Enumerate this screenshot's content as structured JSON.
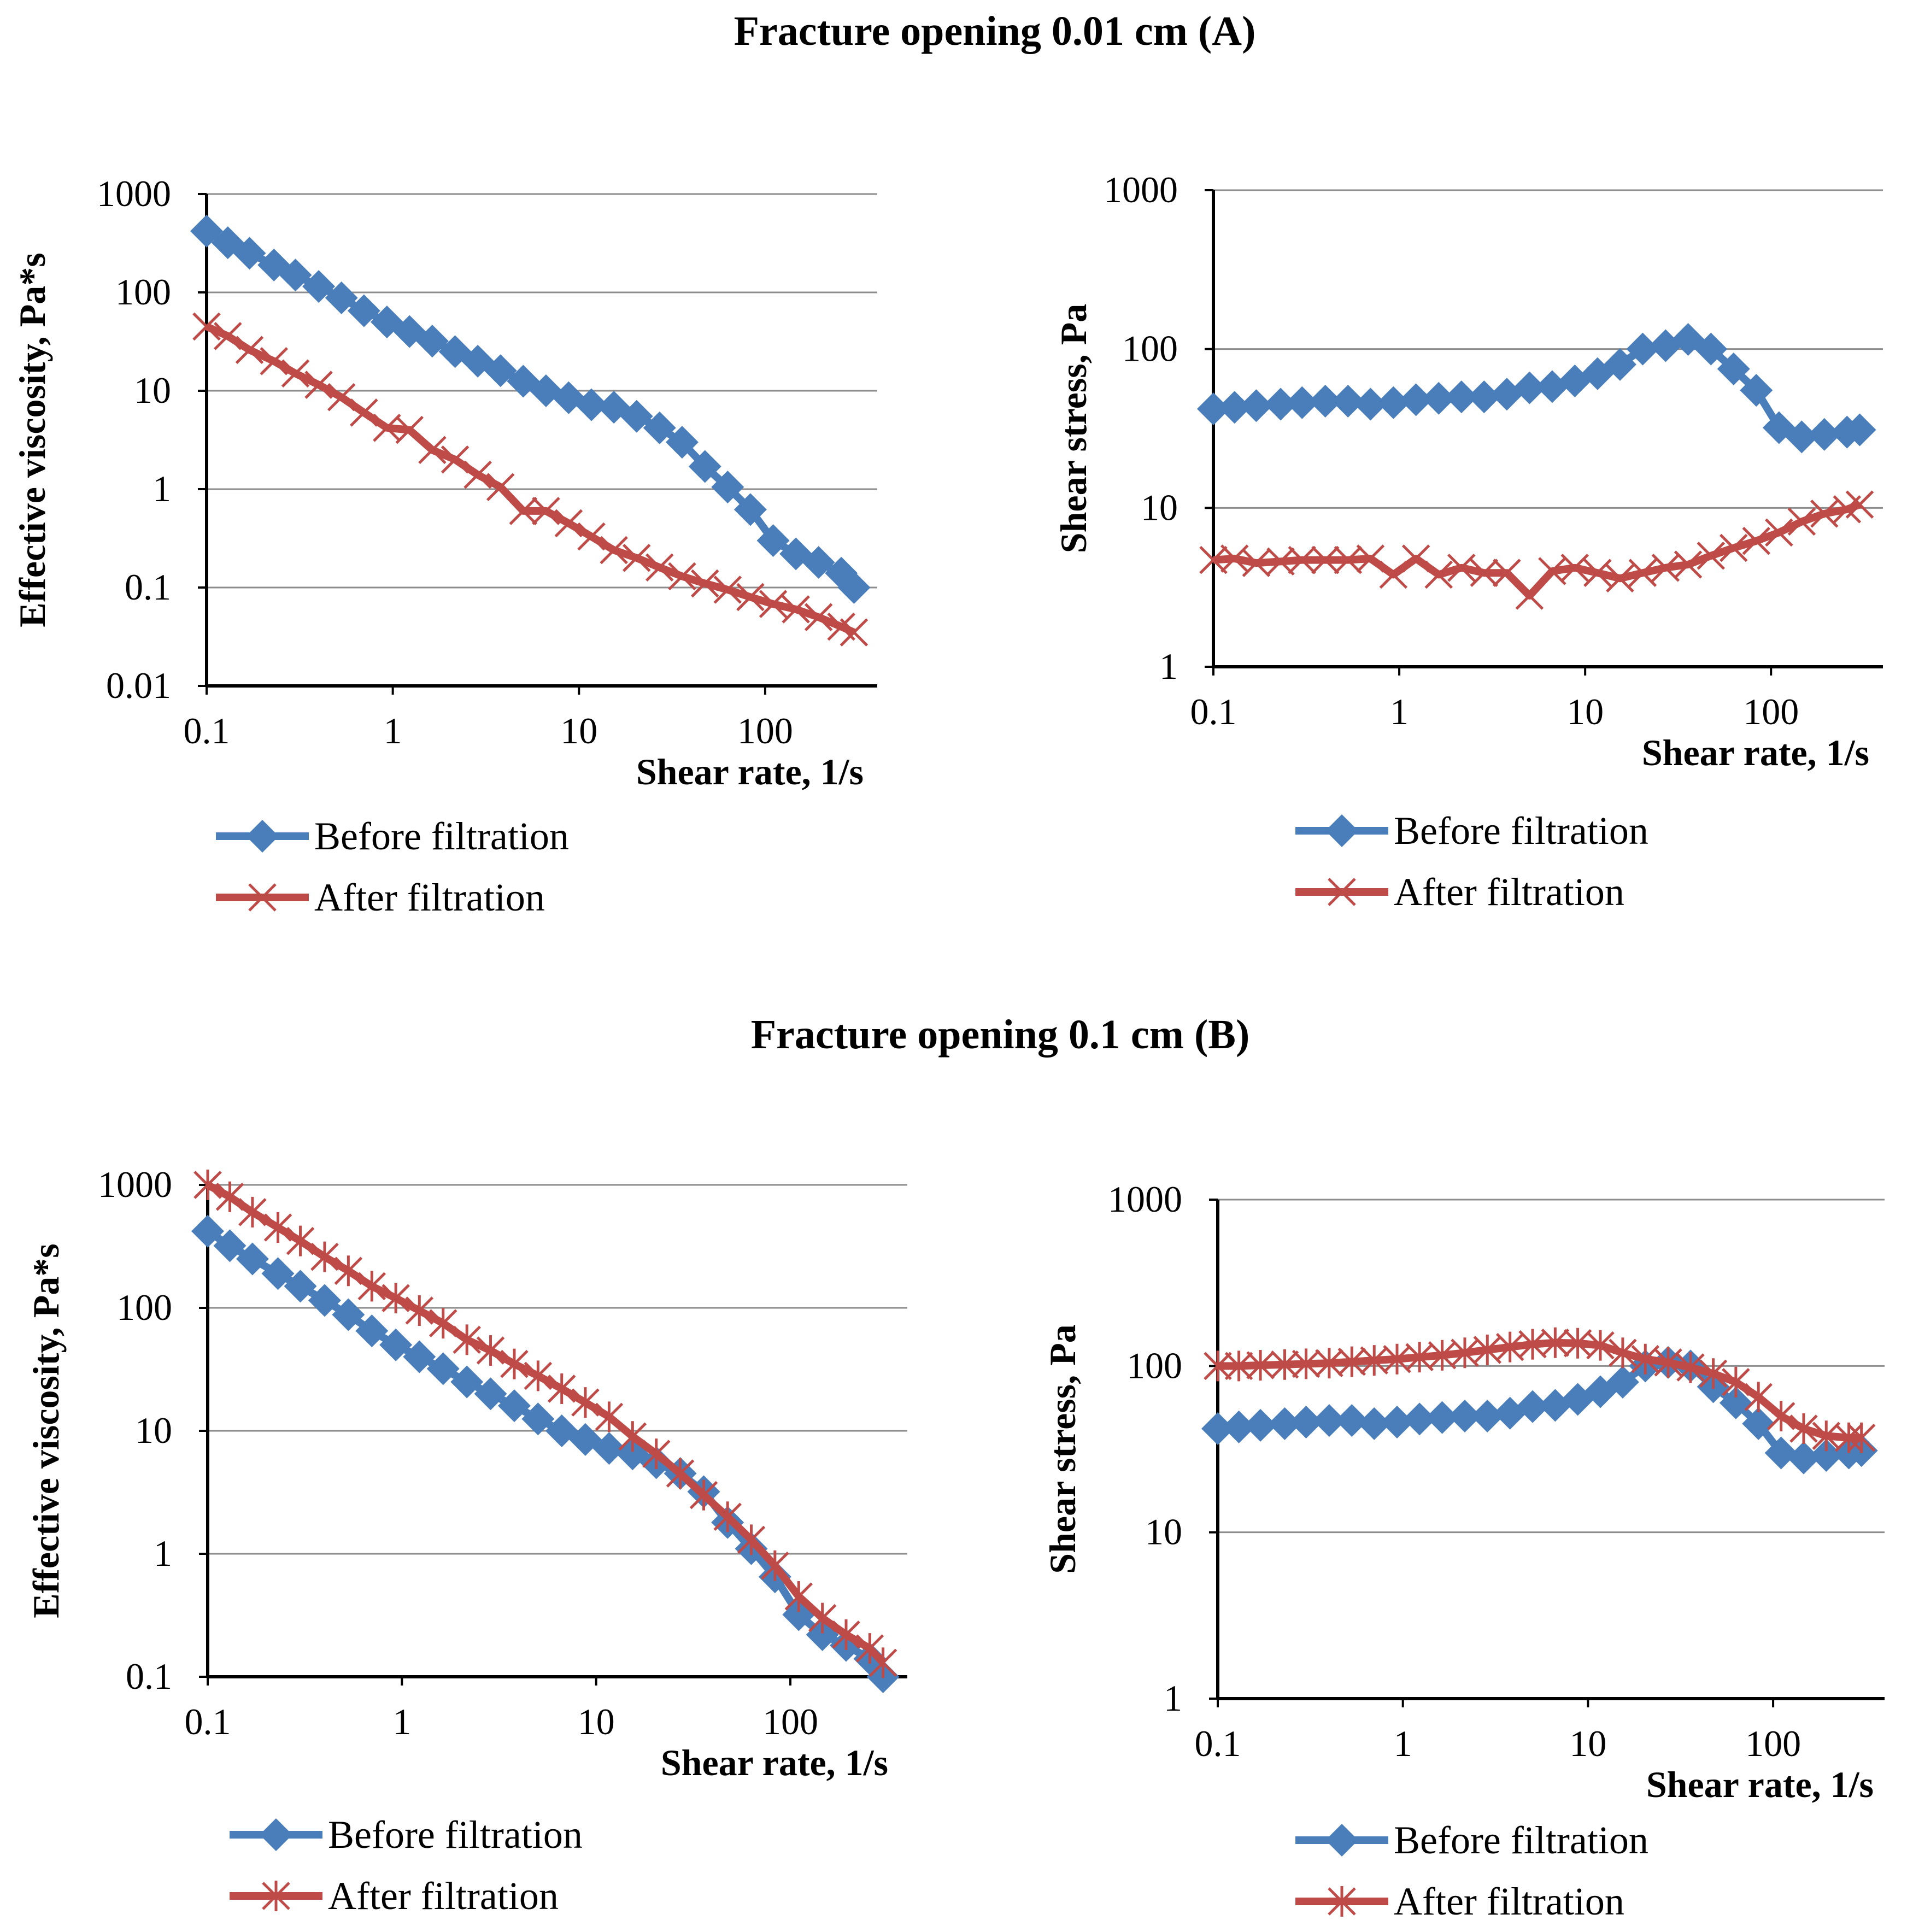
{
  "sections": [
    {
      "title": "Fracture opening 0.01 cm (A)"
    },
    {
      "title": "Fracture opening 0.1 cm (B)"
    }
  ],
  "colors": {
    "before": "#4a7ebb",
    "after": "#be4b48"
  },
  "chart_data": [
    {
      "type": "line",
      "panel": "A-viscosity",
      "xscale": "log",
      "yscale": "log",
      "xlabel": "Shear rate, 1/s",
      "ylabel": "Effective viscosity, Pa*s",
      "xlim": [
        0.1,
        400
      ],
      "ylim": [
        0.01,
        1000
      ],
      "xticks": [
        "0.1",
        "1",
        "10",
        "100"
      ],
      "yticks": [
        "0.01",
        "0.1",
        "1",
        "10",
        "100",
        "1000"
      ],
      "grid": true,
      "legend": "bottom",
      "series": [
        {
          "name": "Before filtration",
          "marker": "diamond",
          "x": [
            0.1,
            0.13,
            0.17,
            0.23,
            0.3,
            0.4,
            0.53,
            0.7,
            0.93,
            1.23,
            1.63,
            2.16,
            2.86,
            3.79,
            5.02,
            6.65,
            8.8,
            11.66,
            15.4,
            20.4,
            27.1,
            35.8,
            47.5,
            62.9,
            83.3,
            110.4,
            146.2,
            193.6,
            256.4,
            300
          ],
          "y": [
            420,
            320,
            250,
            190,
            150,
            115,
            88,
            65,
            50,
            40,
            32,
            25,
            20,
            16,
            12.5,
            10,
            8.5,
            7.2,
            6.8,
            5.5,
            4.2,
            3,
            1.7,
            1.05,
            0.62,
            0.3,
            0.22,
            0.18,
            0.14,
            0.1
          ]
        },
        {
          "name": "After filtration",
          "marker": "x",
          "x": [
            0.1,
            0.13,
            0.17,
            0.23,
            0.3,
            0.4,
            0.53,
            0.7,
            0.93,
            1.23,
            1.63,
            2.16,
            2.86,
            3.79,
            5.02,
            6.65,
            8.8,
            11.66,
            15.4,
            20.4,
            27.1,
            35.8,
            47.5,
            62.9,
            83.3,
            110.4,
            146.2,
            193.6,
            256.4,
            300
          ],
          "y": [
            45,
            36,
            26,
            20,
            15,
            11.5,
            8.6,
            6,
            4.2,
            4,
            2.5,
            2,
            1.4,
            1.05,
            0.6,
            0.6,
            0.45,
            0.33,
            0.24,
            0.2,
            0.16,
            0.13,
            0.11,
            0.095,
            0.08,
            0.068,
            0.06,
            0.05,
            0.04,
            0.035
          ]
        }
      ]
    },
    {
      "type": "line",
      "panel": "A-stress",
      "xscale": "log",
      "yscale": "log",
      "xlabel": "Shear rate, 1/s",
      "ylabel": "Shear stress, Pa",
      "xlim": [
        0.1,
        400
      ],
      "ylim": [
        1,
        1000
      ],
      "xticks": [
        "0.1",
        "1",
        "10",
        "100"
      ],
      "yticks": [
        "1",
        "10",
        "100",
        "1000"
      ],
      "grid": true,
      "legend": "bottom",
      "series": [
        {
          "name": "Before filtration",
          "marker": "diamond",
          "x": [
            0.1,
            0.13,
            0.17,
            0.23,
            0.3,
            0.4,
            0.53,
            0.7,
            0.93,
            1.23,
            1.63,
            2.16,
            2.86,
            3.79,
            5.02,
            6.65,
            8.8,
            11.66,
            15.4,
            20.4,
            27.1,
            35.8,
            47.5,
            62.9,
            83.3,
            110.4,
            146.2,
            193.6,
            256.4,
            300
          ],
          "y": [
            42,
            43,
            44,
            45,
            46,
            47,
            47,
            45,
            46,
            48,
            49,
            50,
            50,
            52,
            57,
            58,
            63,
            70,
            80,
            100,
            105,
            115,
            100,
            75,
            55,
            32,
            28,
            29,
            30,
            31
          ]
        },
        {
          "name": "After filtration",
          "marker": "x",
          "x": [
            0.1,
            0.13,
            0.17,
            0.23,
            0.3,
            0.4,
            0.53,
            0.7,
            0.93,
            1.23,
            1.63,
            2.16,
            2.86,
            3.79,
            5.02,
            6.65,
            8.8,
            11.66,
            15.4,
            20.4,
            27.1,
            35.8,
            47.5,
            62.9,
            83.3,
            110.4,
            146.2,
            193.6,
            256.4,
            300
          ],
          "y": [
            4.7,
            4.8,
            4.5,
            4.6,
            4.7,
            4.7,
            4.7,
            4.8,
            3.8,
            4.8,
            3.8,
            4.2,
            3.9,
            3.9,
            2.8,
            4.0,
            4.2,
            3.9,
            3.6,
            3.9,
            4.2,
            4.4,
            5.0,
            5.6,
            6.2,
            7.0,
            8.2,
            9.2,
            9.8,
            10.5
          ]
        }
      ]
    },
    {
      "type": "line",
      "panel": "B-viscosity",
      "xscale": "log",
      "yscale": "log",
      "xlabel": "Shear rate, 1/s",
      "ylabel": "Effective viscosity, Pa*s",
      "xlim": [
        0.1,
        400
      ],
      "ylim": [
        0.1,
        1000
      ],
      "xticks": [
        "0.1",
        "1",
        "10",
        "100"
      ],
      "yticks": [
        "0.1",
        "1",
        "10",
        "100",
        "1000"
      ],
      "grid": true,
      "legend": "bottom",
      "series": [
        {
          "name": "Before filtration",
          "marker": "diamond",
          "x": [
            0.1,
            0.13,
            0.17,
            0.23,
            0.3,
            0.4,
            0.53,
            0.7,
            0.93,
            1.23,
            1.63,
            2.16,
            2.86,
            3.79,
            5.02,
            6.65,
            8.8,
            11.66,
            15.4,
            20.4,
            27.1,
            35.8,
            47.5,
            62.9,
            83.3,
            110.4,
            146.2,
            193.6,
            256.4,
            300
          ],
          "y": [
            420,
            320,
            250,
            190,
            150,
            115,
            88,
            65,
            50,
            40,
            32,
            25,
            20,
            16,
            12.5,
            10,
            8.5,
            7.2,
            6.5,
            5.5,
            4.5,
            3.2,
            1.8,
            1.1,
            0.65,
            0.32,
            0.22,
            0.18,
            0.14,
            0.1
          ]
        },
        {
          "name": "After filtration",
          "marker": "asterisk",
          "x": [
            0.1,
            0.13,
            0.17,
            0.23,
            0.3,
            0.4,
            0.53,
            0.7,
            0.93,
            1.23,
            1.63,
            2.16,
            2.86,
            3.79,
            5.02,
            6.65,
            8.8,
            11.66,
            15.4,
            20.4,
            27.1,
            35.8,
            47.5,
            62.9,
            83.3,
            110.4,
            146.2,
            193.6,
            256.4,
            300
          ],
          "y": [
            1000,
            800,
            600,
            450,
            350,
            260,
            200,
            150,
            120,
            95,
            75,
            55,
            45,
            35,
            28,
            22,
            17,
            13,
            9,
            6.5,
            4.5,
            3,
            2,
            1.3,
            0.8,
            0.45,
            0.3,
            0.22,
            0.17,
            0.13
          ]
        }
      ]
    },
    {
      "type": "line",
      "panel": "B-stress",
      "xscale": "log",
      "yscale": "log",
      "xlabel": "Shear rate, 1/s",
      "ylabel": "Shear stress, Pa",
      "xlim": [
        0.1,
        400
      ],
      "ylim": [
        1,
        1000
      ],
      "xticks": [
        "0.1",
        "1",
        "10",
        "100"
      ],
      "yticks": [
        "1",
        "10",
        "100",
        "1000"
      ],
      "grid": true,
      "legend": "bottom",
      "series": [
        {
          "name": "Before filtration",
          "marker": "diamond",
          "x": [
            0.1,
            0.13,
            0.17,
            0.23,
            0.3,
            0.4,
            0.53,
            0.7,
            0.93,
            1.23,
            1.63,
            2.16,
            2.86,
            3.79,
            5.02,
            6.65,
            8.8,
            11.66,
            15.4,
            20.4,
            27.1,
            35.8,
            47.5,
            62.9,
            83.3,
            110.4,
            146.2,
            193.6,
            256.4,
            300
          ],
          "y": [
            42,
            43,
            44,
            45,
            46,
            47,
            47,
            45,
            46,
            48,
            49,
            50,
            50,
            52,
            57,
            58,
            63,
            70,
            80,
            100,
            105,
            100,
            75,
            60,
            45,
            30,
            28,
            29,
            30,
            31
          ]
        },
        {
          "name": "After filtration",
          "marker": "asterisk",
          "x": [
            0.1,
            0.13,
            0.17,
            0.23,
            0.3,
            0.4,
            0.53,
            0.7,
            0.93,
            1.23,
            1.63,
            2.16,
            2.86,
            3.79,
            5.02,
            6.65,
            8.8,
            11.66,
            15.4,
            20.4,
            27.1,
            35.8,
            47.5,
            62.9,
            83.3,
            110.4,
            146.2,
            193.6,
            256.4,
            300
          ],
          "y": [
            100,
            100,
            101,
            102,
            103,
            104,
            106,
            108,
            110,
            113,
            116,
            120,
            125,
            130,
            135,
            138,
            137,
            133,
            120,
            110,
            105,
            98,
            90,
            80,
            65,
            50,
            42,
            38,
            37,
            37
          ]
        }
      ]
    }
  ]
}
